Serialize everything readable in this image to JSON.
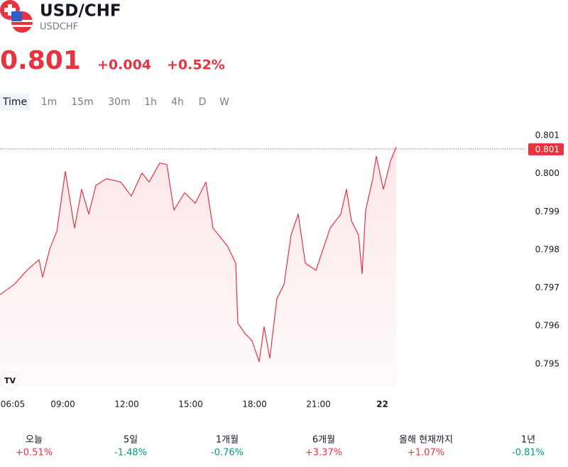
{
  "header": {
    "title": "USD/CHF",
    "symbol": "USDCHF",
    "price": "0.801",
    "change": "+0.004",
    "change_pct": "+0.52%"
  },
  "timeframes": [
    "Time",
    "1m",
    "15m",
    "30m",
    "1h",
    "4h",
    "D",
    "W"
  ],
  "chart_data": {
    "type": "line",
    "color": "#e8323f",
    "x": [
      6.05,
      6.717,
      7.383,
      7.883,
      8.05,
      8.383,
      8.717,
      9.117,
      9.55,
      9.883,
      10.217,
      10.55,
      11.05,
      11.717,
      12.217,
      12.717,
      13.05,
      13.55,
      13.883,
      14.217,
      14.717,
      15.217,
      15.717,
      16.05,
      16.717,
      17.117,
      17.217,
      17.55,
      17.883,
      18.217,
      18.45,
      18.717,
      19.05,
      19.383,
      19.717,
      20.05,
      20.383,
      20.883,
      21.217,
      21.55,
      22.05,
      22.317,
      22.55,
      22.883,
      23.05,
      23.217,
      23.55,
      23.717,
      24.05,
      24.383,
      24.65
    ],
    "values": [
      0.79682,
      0.79709,
      0.7975,
      0.79774,
      0.79728,
      0.79802,
      0.79848,
      0.80006,
      0.79857,
      0.79959,
      0.79894,
      0.79969,
      0.79987,
      0.79978,
      0.79941,
      0.80002,
      0.79978,
      0.80028,
      0.80024,
      0.79904,
      0.7995,
      0.79922,
      0.79978,
      0.79857,
      0.79811,
      0.79765,
      0.79607,
      0.7958,
      0.79561,
      0.79506,
      0.79598,
      0.79515,
      0.79672,
      0.79709,
      0.79839,
      0.79894,
      0.79765,
      0.79746,
      0.79802,
      0.79857,
      0.79894,
      0.79959,
      0.79876,
      0.79839,
      0.79737,
      0.79904,
      0.79987,
      0.80046,
      0.79959,
      0.80033,
      0.8007
    ],
    "xlim": [
      6.05,
      30.717
    ],
    "ylim": [
      0.7944,
      0.8013
    ],
    "xticks": [
      {
        "value": 6.083,
        "label": "06:05"
      },
      {
        "value": 9,
        "label": "09:00"
      },
      {
        "value": 12,
        "label": "12:00"
      },
      {
        "value": 15,
        "label": "15:00"
      },
      {
        "value": 18,
        "label": "18:00"
      },
      {
        "value": 21,
        "label": "21:00"
      },
      {
        "value": 24,
        "label": "22"
      }
    ],
    "yticks": [
      0.795,
      0.796,
      0.797,
      0.798,
      0.799,
      {
        "value": 0.8,
        "label": "0.800"
      },
      0.801
    ],
    "last_price": {
      "value": 0.80065,
      "label": "0.801"
    }
  },
  "periods": [
    {
      "label": "오늘",
      "change": "+0.51%"
    },
    {
      "label": "5일",
      "change": "-1.48%"
    },
    {
      "label": "1개월",
      "change": "-0.76%"
    },
    {
      "label": "6개월",
      "change": "+3.37%"
    },
    {
      "label": "올해 현재까지",
      "change": "+1.07%"
    },
    {
      "label": "1년",
      "change": "-0.81%"
    }
  ]
}
